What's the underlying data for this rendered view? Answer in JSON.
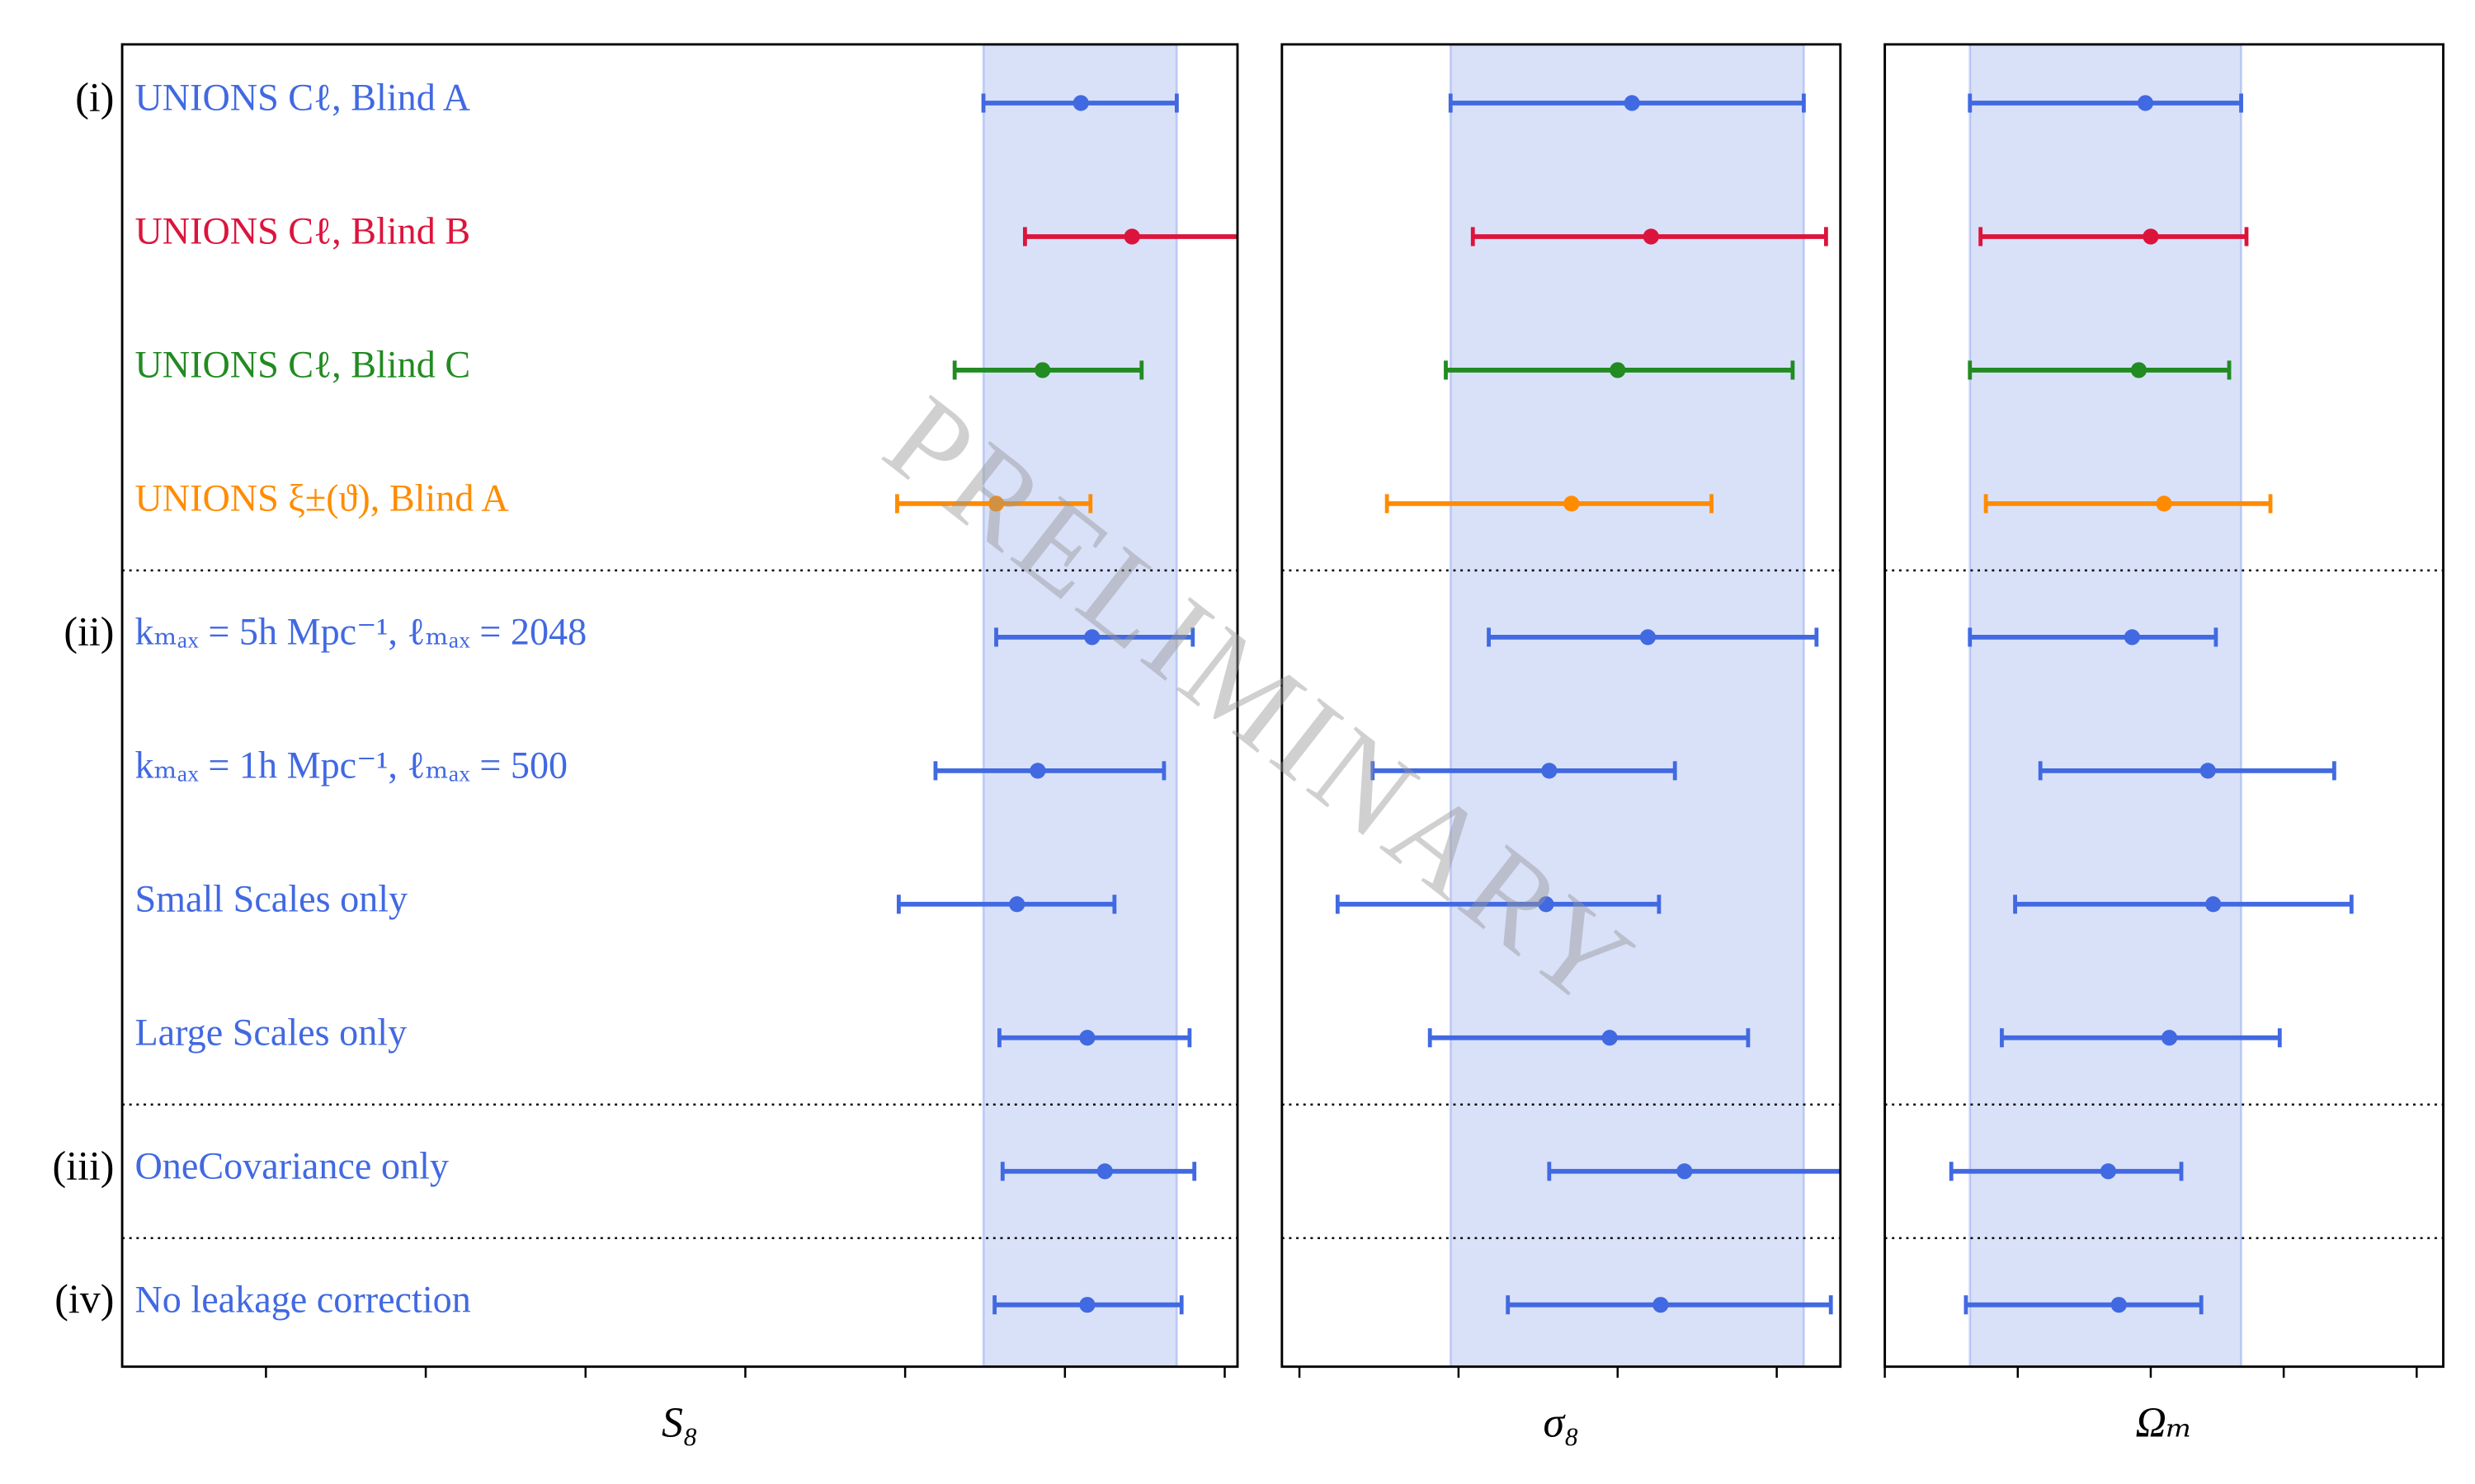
{
  "chart_data": [
    {
      "type": "errorbar",
      "xlabel": "S₈",
      "categories": [
        "UNIONS Cℓ, Blind A",
        "UNIONS Cℓ, Blind B",
        "UNIONS Cℓ, Blind C",
        "UNIONS ξ±(ϑ), Blind A",
        "kₘₐₓ = 5h Mpc⁻¹,  ℓₘₐₓ = 2048",
        "kₘₐₓ = 1h Mpc⁻¹,  ℓₘₐₓ = 500",
        "Small Scales only",
        "Large Scales only",
        "OneCovariance only",
        "No leakage correction"
      ],
      "colors": [
        "#4169e1",
        "#dc143c",
        "#228b22",
        "#ff8c00",
        "#4169e1",
        "#4169e1",
        "#4169e1",
        "#4169e1",
        "#4169e1",
        "#4169e1"
      ],
      "groups": [
        {
          "label": "(i)",
          "row": 0
        },
        {
          "label": "(ii)",
          "row": 4
        },
        {
          "label": "(iii)",
          "row": 8
        },
        {
          "label": "(iv)",
          "row": 9
        }
      ],
      "separators_after": [
        3,
        7,
        8
      ],
      "watermark": "PRELIMINARY",
      "values": [
        6.1,
        6.42,
        5.86,
        5.57,
        6.17,
        5.83,
        5.7,
        6.14,
        6.25,
        6.14
      ],
      "lower": [
        5.49,
        5.75,
        5.31,
        4.95,
        5.57,
        5.19,
        4.96,
        5.59,
        5.61,
        5.56
      ],
      "upper": [
        6.7,
        7.13,
        6.48,
        6.16,
        6.8,
        6.62,
        6.31,
        6.78,
        6.81,
        6.73
      ],
      "band": [
        5.49,
        6.7
      ],
      "xlim": [
        0.1,
        7.08
      ],
      "xticks": [
        1,
        2,
        3,
        4,
        5,
        6,
        7
      ]
    },
    {
      "type": "errorbar",
      "xlabel": "σ₈",
      "values": [
        3.09,
        3.21,
        3.0,
        2.71,
        3.19,
        2.57,
        2.55,
        2.95,
        3.42,
        3.27
      ],
      "lower": [
        1.95,
        2.09,
        1.92,
        1.55,
        2.19,
        1.46,
        1.24,
        1.82,
        2.57,
        2.31
      ],
      "upper": [
        4.17,
        4.31,
        4.1,
        3.59,
        4.25,
        3.36,
        3.26,
        3.82,
        4.45,
        4.34
      ],
      "band": [
        1.95,
        4.17
      ],
      "xlim": [
        0.89,
        4.4
      ],
      "xticks": [
        1,
        2,
        3,
        4
      ]
    },
    {
      "type": "errorbar",
      "xlabel": "Ωₘ",
      "values": [
        1.96,
        2.0,
        1.91,
        2.1,
        1.86,
        2.43,
        2.47,
        2.14,
        1.68,
        1.76
      ],
      "lower": [
        0.64,
        0.72,
        0.64,
        0.76,
        0.64,
        1.17,
        0.98,
        0.88,
        0.5,
        0.61
      ],
      "upper": [
        2.68,
        2.72,
        2.59,
        2.9,
        2.49,
        3.38,
        3.51,
        2.97,
        2.23,
        2.38
      ],
      "band": [
        0.64,
        2.68
      ],
      "xlim": [
        0,
        4.2
      ],
      "xticks": [
        0,
        1,
        2,
        3,
        4
      ]
    }
  ]
}
